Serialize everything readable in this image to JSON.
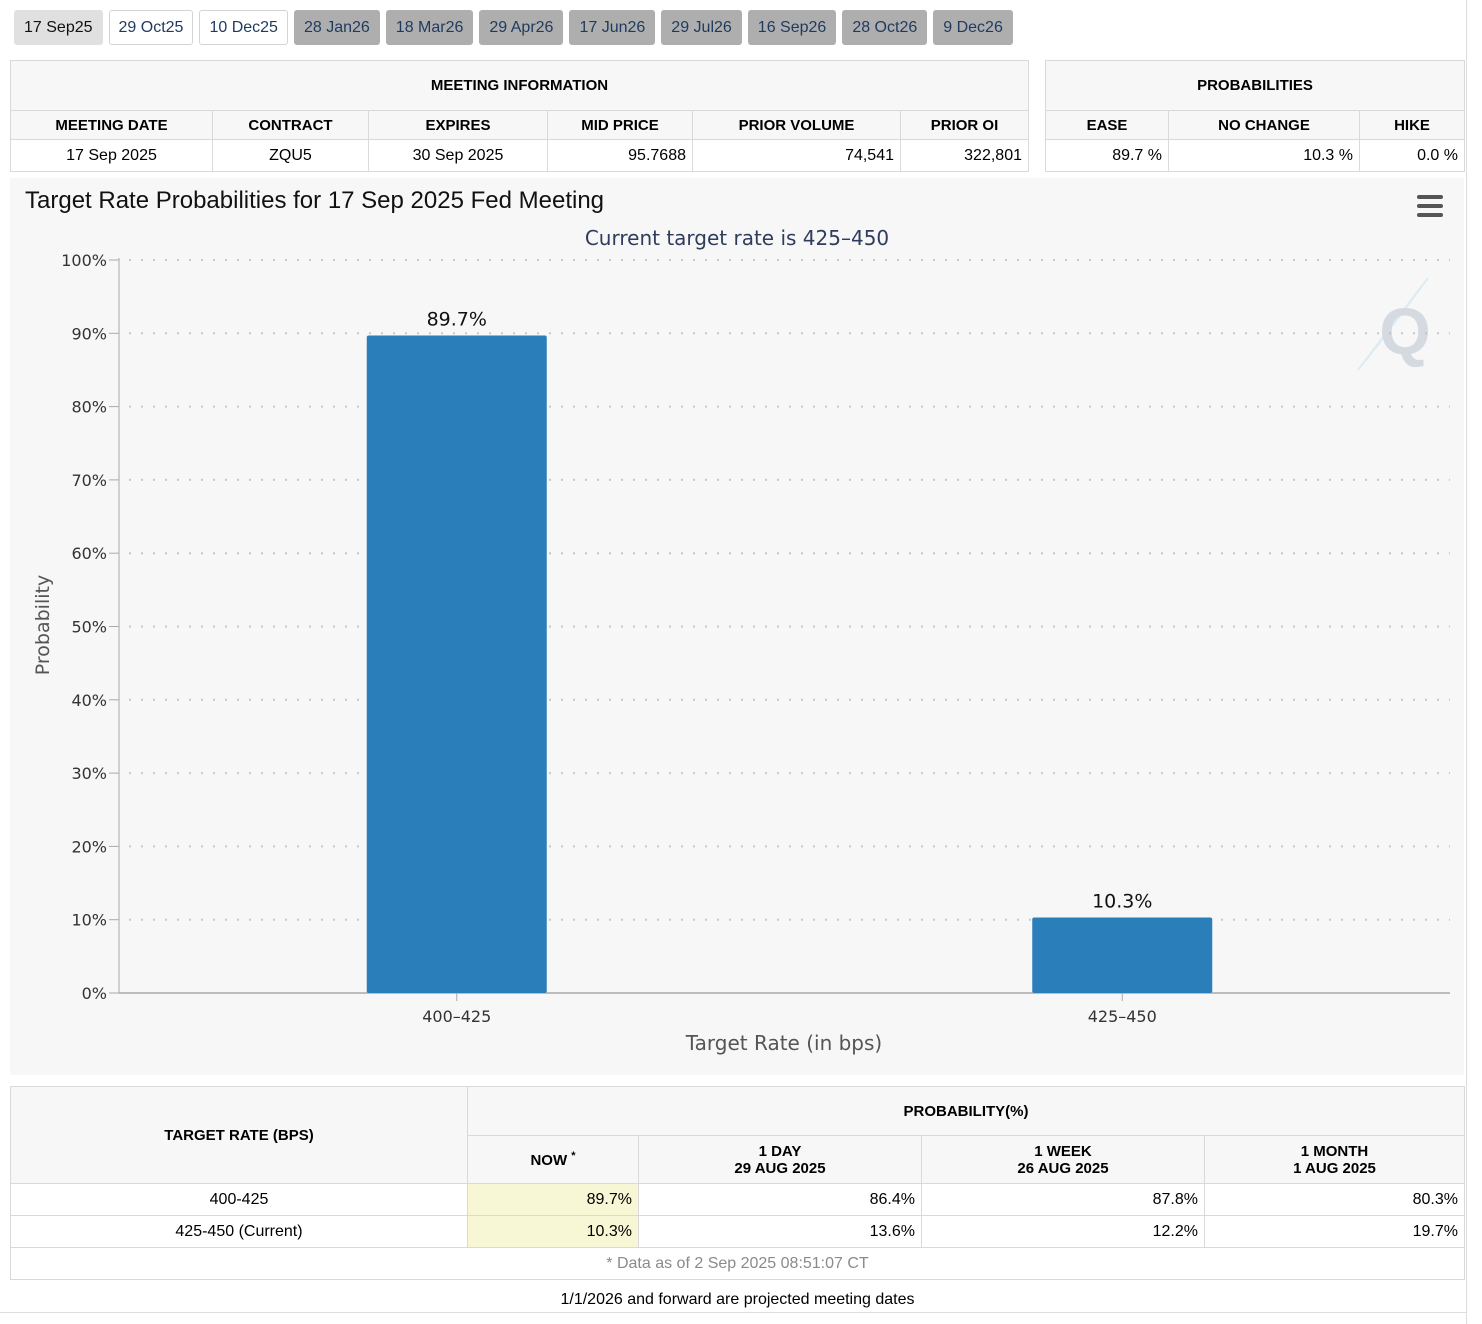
{
  "tabs": [
    {
      "label": "17 Sep25",
      "state": "active"
    },
    {
      "label": "29 Oct25",
      "state": "open"
    },
    {
      "label": "10 Dec25",
      "state": "open"
    },
    {
      "label": "28 Jan26",
      "state": "projected"
    },
    {
      "label": "18 Mar26",
      "state": "projected"
    },
    {
      "label": "29 Apr26",
      "state": "projected"
    },
    {
      "label": "17 Jun26",
      "state": "projected"
    },
    {
      "label": "29 Jul26",
      "state": "projected"
    },
    {
      "label": "16 Sep26",
      "state": "projected"
    },
    {
      "label": "28 Oct26",
      "state": "projected"
    },
    {
      "label": "9 Dec26",
      "state": "projected"
    }
  ],
  "meeting_info": {
    "header": "MEETING INFORMATION",
    "columns": [
      "MEETING DATE",
      "CONTRACT",
      "EXPIRES",
      "MID PRICE",
      "PRIOR VOLUME",
      "PRIOR OI"
    ],
    "values": [
      "17 Sep 2025",
      "ZQU5",
      "30 Sep 2025",
      "95.7688",
      "74,541",
      "322,801"
    ]
  },
  "probabilities": {
    "header": "PROBABILITIES",
    "columns": [
      "EASE",
      "NO CHANGE",
      "HIKE"
    ],
    "values": [
      "89.7 %",
      "10.3 %",
      "0.0 %"
    ]
  },
  "chart_data": {
    "type": "bar",
    "title": "Target Rate Probabilities for 17 Sep 2025 Fed Meeting",
    "subtitle": "Current target rate is 425–450",
    "xlabel": "Target Rate (in bps)",
    "ylabel": "Probability",
    "categories": [
      "400–425",
      "425–450"
    ],
    "values": [
      89.7,
      10.3
    ],
    "data_labels": [
      "89.7%",
      "10.3%"
    ],
    "ylim": [
      0,
      100
    ],
    "yticks": [
      "0%",
      "10%",
      "20%",
      "30%",
      "40%",
      "50%",
      "60%",
      "70%",
      "80%",
      "90%",
      "100%"
    ],
    "grid": true,
    "bar_color": "#2a7fba"
  },
  "distribution": {
    "target_rate_header": "TARGET RATE (BPS)",
    "probability_header": "PROBABILITY(%)",
    "now_label": "NOW",
    "now_marker": "*",
    "col_1day": "1 DAY",
    "col_1day_date": "29 AUG 2025",
    "col_1week": "1 WEEK",
    "col_1week_date": "26 AUG 2025",
    "col_1month": "1 MONTH",
    "col_1month_date": "1 AUG 2025",
    "rows": [
      {
        "rate": "400-425",
        "now": "89.7%",
        "day": "86.4%",
        "week": "87.8%",
        "month": "80.3%"
      },
      {
        "rate": "425-450 (Current)",
        "now": "10.3%",
        "day": "13.6%",
        "week": "12.2%",
        "month": "19.7%"
      }
    ],
    "data_note": "* Data as of 2 Sep 2025 08:51:07 CT"
  },
  "footer_note": "1/1/2026 and forward are projected meeting dates"
}
